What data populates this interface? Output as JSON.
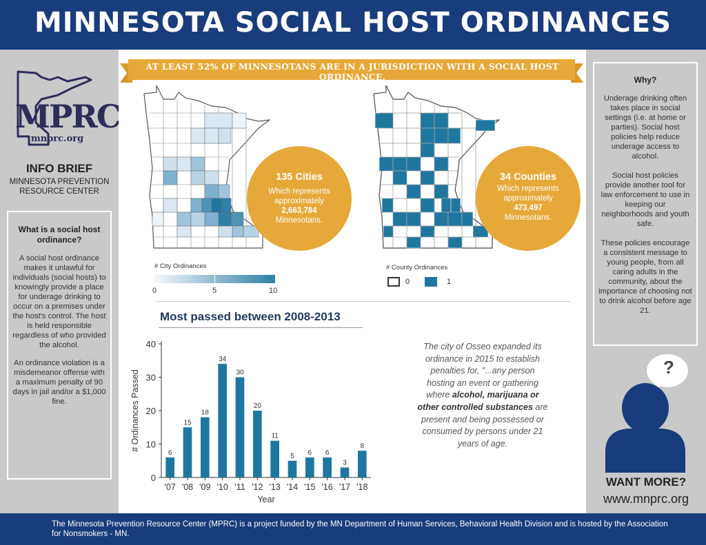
{
  "header": {
    "title": "MINNESOTA SOCIAL HOST ORDINANCES"
  },
  "banner": {
    "text": "AT LEAST 52% OF MINNESOTANS ARE IN A JURISDICTION WITH A SOCIAL HOST ORDINANCE."
  },
  "left": {
    "logo_text": "MPRC",
    "logo_url": "mnprc.org",
    "info_brief": "INFO BRIEF",
    "org_name": "MINNESOTA PREVENTION RESOURCE CENTER",
    "box_title": "What is a social host ordinance?",
    "box_p1": "A social host ordinance makes it unlawful for individuals (social hosts) to knowingly provide a place for underage drinking to occur on a premises under the host's control. The host is held responsible regardless of who provided the alcohol.",
    "box_p2": "An ordinance violation is a misdemeanor offense with a maximum penalty of 90 days in jail and/or a $1,000 fine."
  },
  "cities": {
    "headline": "135 Cities",
    "line1": "Which represents approximately",
    "population": "2,663,784",
    "line2": "Minnesotans.",
    "legend_title": "# City Ordinances",
    "legend_ticks": [
      "0",
      "5",
      "10"
    ]
  },
  "counties": {
    "headline": "34 Counties",
    "line1": "Which represents approximately",
    "population": "473,497",
    "line2": "Minnesotans.",
    "legend_title": "# County Ordinances",
    "legend_items": [
      "0",
      "1"
    ]
  },
  "chart_data": {
    "type": "bar",
    "title": "Most passed between 2008-2013",
    "xlabel": "Year",
    "ylabel": "# Ordinances Passed",
    "categories": [
      "'07",
      "'08",
      "'09",
      "'10",
      "'11",
      "'12",
      "'13",
      "'14",
      "'15",
      "'16",
      "'17",
      "'18"
    ],
    "values": [
      6,
      15,
      18,
      34,
      30,
      20,
      11,
      5,
      6,
      6,
      3,
      8
    ],
    "ylim": [
      0,
      40
    ],
    "yticks": [
      0,
      10,
      20,
      30,
      40
    ],
    "color": "#1f77a0",
    "grid": false
  },
  "quote": {
    "part1": "The city of Osseo expanded its ordinance in 2015 to establish penalties for, \"...any person hosting an event or gathering where ",
    "bold": "alcohol, marijuana or other controlled substances",
    "part2": " are present and being possessed or consumed by persons under 21 years of age."
  },
  "right": {
    "box_title": "Why?",
    "p1": "Underage drinking often takes place in social settings (i.e. at home or parties). Social host policies help reduce underage access to alcohol.",
    "p2": "Social host policies provide another tool for law enforcement to use in keeping our neighborhoods and youth safe.",
    "p3": "These policies encourage a consistent message to young people, from all caring adults in the community, about the importance of choosing not to drink alcohol before age 21.",
    "bubble": "?",
    "want_more": "WANT MORE?",
    "url": "www.mnprc.org"
  },
  "footer": {
    "text": "The Minnesota Prevention Resource Center (MPRC) is a project funded by the MN Department of Human Services, Behavioral Health Division and is hosted by the Association for Nonsmokers - MN."
  },
  "colors": {
    "navy": "#193c7c",
    "gold": "#e6a838",
    "teal": "#1f77a0"
  }
}
